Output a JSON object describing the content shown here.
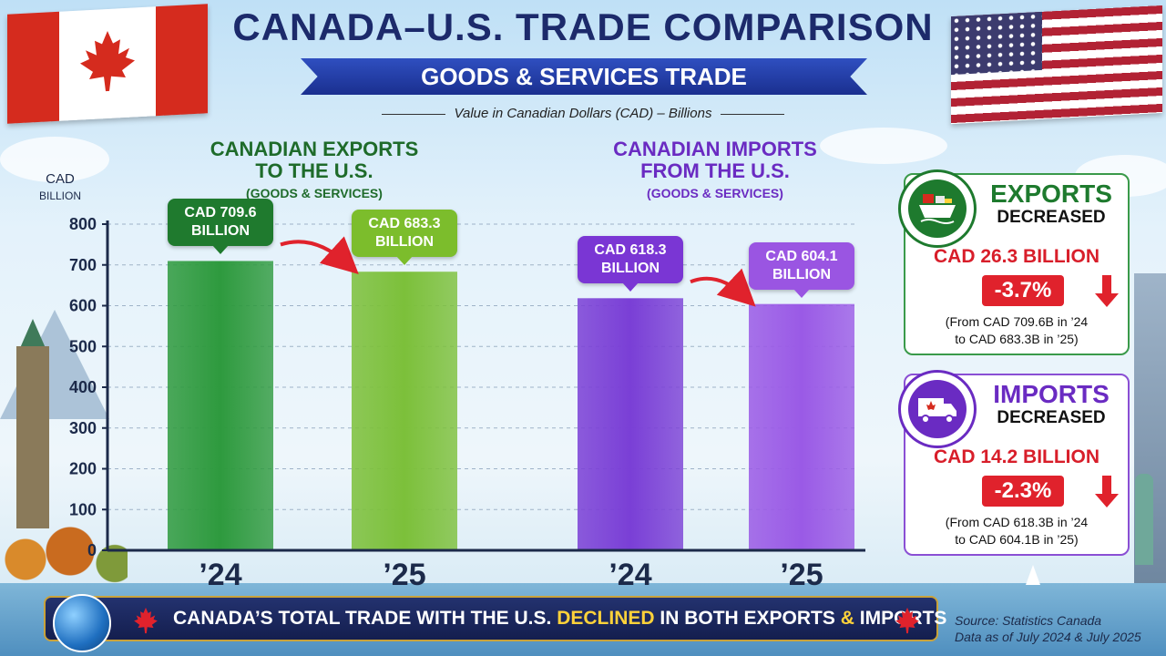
{
  "header": {
    "title": "CANADA–U.S. TRADE COMPARISON",
    "banner": "GOODS & SERVICES TRADE",
    "subtitle": "Value in Canadian Dollars (CAD) – Billions"
  },
  "groups": [
    {
      "line1": "CANADIAN EXPORTS",
      "line2": "TO THE U.S.",
      "line3": "(GOODS & SERVICES)",
      "color": "#1e6b2a"
    },
    {
      "line1": "CANADIAN IMPORTS",
      "line2": "FROM THE U.S.",
      "line3": "(GOODS & SERVICES)",
      "color": "#6a2bc2"
    }
  ],
  "chart_data": {
    "type": "bar",
    "ylabel_line1": "CAD",
    "ylabel_line2": "BILLION",
    "ylim": [
      0,
      800
    ],
    "yticks": [
      0,
      100,
      200,
      300,
      400,
      500,
      600,
      700,
      800
    ],
    "categories": [
      "’24",
      "’25",
      "’24",
      "’25"
    ],
    "values": [
      709.6,
      683.3,
      618.3,
      604.1
    ],
    "bar_colors": [
      "#2e9a3e",
      "#7cc03a",
      "#7a3fd6",
      "#9a5ae6"
    ],
    "callouts": [
      {
        "line1": "CAD 709.6",
        "line2": "BILLION",
        "color": "#1f7a2e"
      },
      {
        "line1": "CAD 683.3",
        "line2": "BILLION",
        "color": "#7cbd2c"
      },
      {
        "line1": "CAD 618.3",
        "line2": "BILLION",
        "color": "#7a36d4"
      },
      {
        "line1": "CAD 604.1",
        "line2": "BILLION",
        "color": "#9a55e2"
      }
    ]
  },
  "cards": {
    "exports": {
      "title": "EXPORTS",
      "status": "DECREASED",
      "amount": "CAD 26.3 BILLION",
      "percent": "-3.7%",
      "note_line1": "(From CAD 709.6B in ’24",
      "note_line2": "to CAD 683.3B in ’25)",
      "icon": "ship-icon",
      "color": "#1e7a2e"
    },
    "imports": {
      "title": "IMPORTS",
      "status": "DECREASED",
      "amount": "CAD 14.2 BILLION",
      "percent": "-2.3%",
      "note_line1": "(From CAD 618.3B in ’24",
      "note_line2": "to CAD 604.1B in ’25)",
      "icon": "truck-icon",
      "color": "#6a2bc2"
    }
  },
  "footer": {
    "text_before": "CANADA’S TOTAL TRADE WITH THE U.S.",
    "highlight": "DECLINED",
    "text_mid": "IN BOTH EXPORTS",
    "amp": "&",
    "text_after": "IMPORTS",
    "source_line1": "Source: Statistics Canada",
    "source_line2": "Data as of July 2024 & July 2025"
  }
}
